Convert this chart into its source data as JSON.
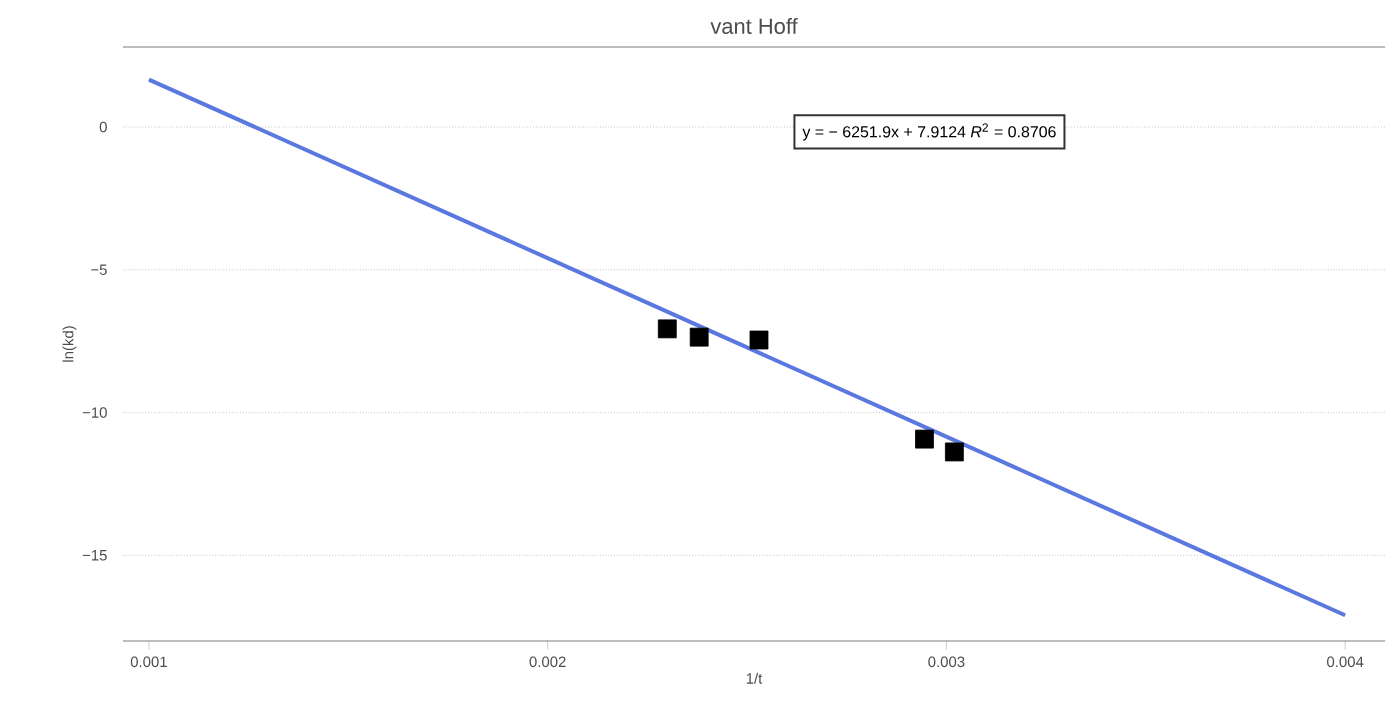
{
  "chart_data": {
    "type": "scatter",
    "title": "vant Hoff",
    "xlabel": "1/t",
    "ylabel": "ln(kd)",
    "annotations": [
      "y = − 6251.9x + 7.9124 *R*$^{2}$ = 0.8706"
    ],
    "series": [
      {
        "color": "#000000",
        "marker": "square",
        "x": [
          0.0023,
          0.00238,
          0.00253,
          0.002945,
          0.00302
        ],
        "values": [
          -7.07,
          -7.36,
          -7.46,
          -10.93,
          -11.38
        ]
      },
      {
        "type": "line",
        "color": "#5b78e0",
        "x": [
          0.001,
          0.004
        ],
        "values": [
          1.66,
          -17.1
        ]
      }
    ],
    "xlim": [
      0.000935,
      0.0041
    ],
    "ylim": [
      -18,
      2.8
    ],
    "xticks": [
      {
        "value": 0.001,
        "label": "0.001"
      },
      {
        "value": 0.002,
        "label": "0.002"
      },
      {
        "value": 0.003,
        "label": "0.003"
      },
      {
        "value": 0.004,
        "label": "0.004"
      }
    ],
    "yticks": [
      {
        "value": 0,
        "label": "0"
      },
      {
        "value": -5,
        "label": "−5"
      },
      {
        "value": -10,
        "label": "−10"
      },
      {
        "value": -15,
        "label": "−15"
      }
    ],
    "grid": "y"
  }
}
